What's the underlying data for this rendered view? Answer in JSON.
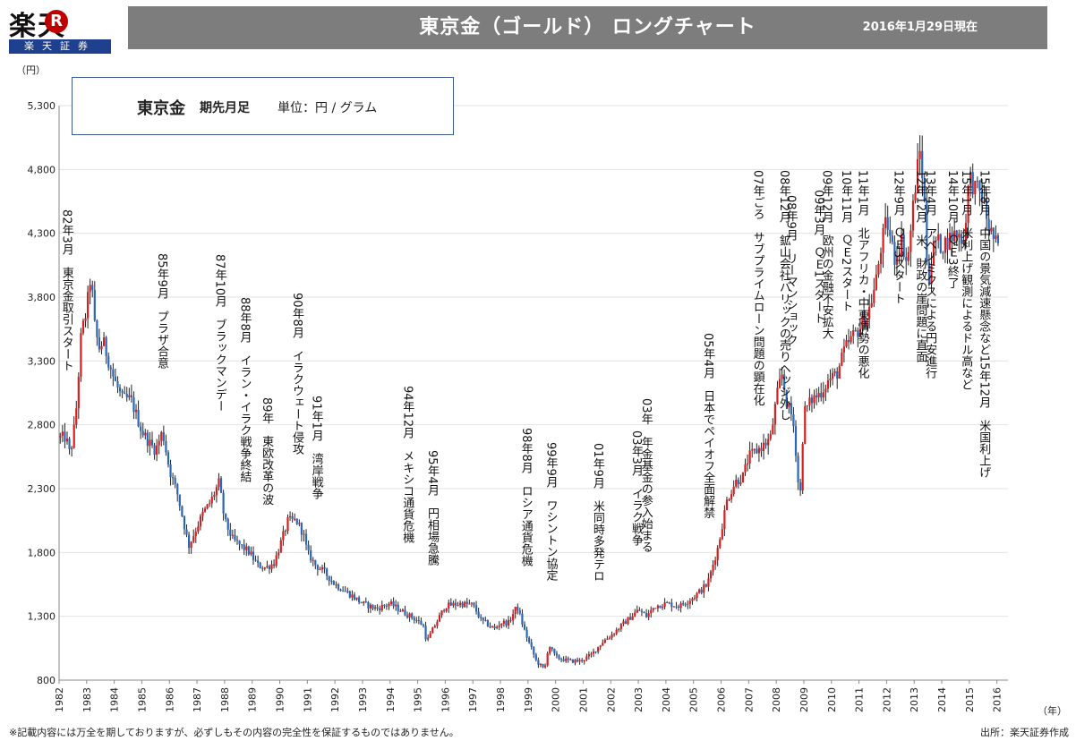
{
  "header": {
    "logo_text": "楽天",
    "logo_mark": "R",
    "logo_sub": "楽天証券",
    "title": "東京金（ゴールド） ロングチャート",
    "as_of": "2016年1月29日現在"
  },
  "legend_box": {
    "name": "東京金",
    "contract": "期先月足",
    "unit": "単位：円 / グラム"
  },
  "footer": {
    "disclaimer": "※記載内容には万全を期しておりますが、必ずしもその内容の完全性を保証するものではありません。",
    "source": "出所：楽天証券作成"
  },
  "chart_data": {
    "type": "candlestick",
    "title": "東京金（ゴールド） ロングチャート",
    "series_name": "東京金 期先月足",
    "ylabel": "（円）",
    "xlabel": "（年）",
    "ylim": [
      800,
      5300
    ],
    "xlim": [
      1982,
      2016.4
    ],
    "yticks": [
      800,
      1300,
      1800,
      2300,
      2800,
      3300,
      3800,
      4300,
      4800,
      5300
    ],
    "yticklabels": [
      "800",
      "1,300",
      "1,800",
      "2,300",
      "2,800",
      "3,300",
      "3,800",
      "4,300",
      "4,800",
      "5,300"
    ],
    "xticks": [
      1982,
      1983,
      1984,
      1985,
      1986,
      1987,
      1988,
      1989,
      1990,
      1991,
      1992,
      1993,
      1994,
      1995,
      1996,
      1997,
      1998,
      1999,
      2000,
      2001,
      2002,
      2003,
      2004,
      2005,
      2006,
      2007,
      2008,
      2009,
      2010,
      2011,
      2012,
      2013,
      2014,
      2015,
      2016
    ],
    "grid": true,
    "up_color": "#d81e1e",
    "down_color": "#2a67b8",
    "wick_color": "#222222",
    "price_path": [
      [
        1982.0,
        2700
      ],
      [
        1982.25,
        2700
      ],
      [
        1982.4,
        2560
      ],
      [
        1982.6,
        2850
      ],
      [
        1982.8,
        3500
      ],
      [
        1983.0,
        3700
      ],
      [
        1983.15,
        3980
      ],
      [
        1983.3,
        3550
      ],
      [
        1983.45,
        3400
      ],
      [
        1983.6,
        3450
      ],
      [
        1983.8,
        3300
      ],
      [
        1984.0,
        3150
      ],
      [
        1984.3,
        3000
      ],
      [
        1984.6,
        3000
      ],
      [
        1985.0,
        2750
      ],
      [
        1985.3,
        2650
      ],
      [
        1985.5,
        2600
      ],
      [
        1985.75,
        2750
      ],
      [
        1986.0,
        2450
      ],
      [
        1986.3,
        2250
      ],
      [
        1986.5,
        2050
      ],
      [
        1986.7,
        1850
      ],
      [
        1986.9,
        1950
      ],
      [
        1987.2,
        2100
      ],
      [
        1987.5,
        2200
      ],
      [
        1987.8,
        2350
      ],
      [
        1988.0,
        2050
      ],
      [
        1988.3,
        1900
      ],
      [
        1988.6,
        1850
      ],
      [
        1988.9,
        1800
      ],
      [
        1989.2,
        1700
      ],
      [
        1989.5,
        1680
      ],
      [
        1989.8,
        1720
      ],
      [
        1990.0,
        1850
      ],
      [
        1990.3,
        2050
      ],
      [
        1990.6,
        2050
      ],
      [
        1990.85,
        1950
      ],
      [
        1991.0,
        1800
      ],
      [
        1991.3,
        1700
      ],
      [
        1991.6,
        1650
      ],
      [
        1992.0,
        1550
      ],
      [
        1992.5,
        1480
      ],
      [
        1993.0,
        1400
      ],
      [
        1993.5,
        1360
      ],
      [
        1994.0,
        1400
      ],
      [
        1994.5,
        1330
      ],
      [
        1994.9,
        1280
      ],
      [
        1995.2,
        1230
      ],
      [
        1995.33,
        1100
      ],
      [
        1995.6,
        1220
      ],
      [
        1996.0,
        1380
      ],
      [
        1996.5,
        1400
      ],
      [
        1997.0,
        1390
      ],
      [
        1997.3,
        1270
      ],
      [
        1997.8,
        1200
      ],
      [
        1998.0,
        1250
      ],
      [
        1998.3,
        1250
      ],
      [
        1998.6,
        1380
      ],
      [
        1998.9,
        1170
      ],
      [
        1999.3,
        950
      ],
      [
        1999.6,
        880
      ],
      [
        1999.75,
        1080
      ],
      [
        2000.0,
        980
      ],
      [
        2000.5,
        950
      ],
      [
        2000.9,
        950
      ],
      [
        2001.3,
        1000
      ],
      [
        2001.7,
        1100
      ],
      [
        2002.0,
        1150
      ],
      [
        2002.5,
        1250
      ],
      [
        2003.0,
        1350
      ],
      [
        2003.3,
        1300
      ],
      [
        2003.6,
        1380
      ],
      [
        2004.0,
        1400
      ],
      [
        2004.5,
        1380
      ],
      [
        2005.0,
        1450
      ],
      [
        2005.5,
        1550
      ],
      [
        2005.9,
        1850
      ],
      [
        2006.2,
        2200
      ],
      [
        2006.5,
        2350
      ],
      [
        2006.8,
        2400
      ],
      [
        2007.0,
        2550
      ],
      [
        2007.3,
        2600
      ],
      [
        2007.6,
        2650
      ],
      [
        2007.8,
        2700
      ],
      [
        2008.0,
        3000
      ],
      [
        2008.2,
        3200
      ],
      [
        2008.4,
        2950
      ],
      [
        2008.6,
        2850
      ],
      [
        2008.75,
        2500
      ],
      [
        2008.85,
        2150
      ],
      [
        2009.0,
        2900
      ],
      [
        2009.3,
        3000
      ],
      [
        2009.6,
        3050
      ],
      [
        2009.9,
        3150
      ],
      [
        2010.2,
        3200
      ],
      [
        2010.5,
        3400
      ],
      [
        2010.8,
        3500
      ],
      [
        2011.0,
        3550
      ],
      [
        2011.3,
        3650
      ],
      [
        2011.6,
        3900
      ],
      [
        2011.8,
        4200
      ],
      [
        2012.0,
        4400
      ],
      [
        2012.3,
        4100
      ],
      [
        2012.55,
        4250
      ],
      [
        2012.75,
        4050
      ],
      [
        2013.0,
        4600
      ],
      [
        2013.2,
        4950
      ],
      [
        2013.35,
        4650
      ],
      [
        2013.5,
        3900
      ],
      [
        2013.75,
        4250
      ],
      [
        2014.0,
        4200
      ],
      [
        2014.5,
        4300
      ],
      [
        2014.8,
        4250
      ],
      [
        2015.0,
        4750
      ],
      [
        2015.2,
        4650
      ],
      [
        2015.45,
        4600
      ],
      [
        2015.7,
        4350
      ],
      [
        2016.0,
        4200
      ],
      [
        2016.08,
        4150
      ]
    ],
    "annotations": [
      {
        "x": 1982.25,
        "text": "82年3月　東京金取引スタート"
      },
      {
        "x": 1985.7,
        "text": "85年9月　プラザ合意"
      },
      {
        "x": 1987.8,
        "text": "87年10月　ブラックマンデー"
      },
      {
        "x": 1988.7,
        "text": "88年8月　イラン・イラク戦争終結"
      },
      {
        "x": 1989.5,
        "text": "89年　東欧改革の波"
      },
      {
        "x": 1990.6,
        "text": "90年8月　イラクウェート侵攻"
      },
      {
        "x": 1991.3,
        "text": "91年1月　湾岸戦争"
      },
      {
        "x": 1994.6,
        "text": "94年12月　メキシコ通貨危機"
      },
      {
        "x": 1995.5,
        "text": "95年4月　円相場急騰"
      },
      {
        "x": 1998.9,
        "text": "98年8月　ロシア通貨危機"
      },
      {
        "x": 1999.8,
        "text": "99年9月　ワシントン協定"
      },
      {
        "x": 2001.5,
        "text": "01年9月　米同時多発テロ"
      },
      {
        "x": 2002.9,
        "text": "03年3月　イラク戦争"
      },
      {
        "x": 2003.25,
        "text": "03年　年金基金の参入始まる"
      },
      {
        "x": 2005.5,
        "text": "05年4月　日本でペイオフ全面解禁"
      },
      {
        "x": 2007.3,
        "text": "07年ごろ　サブプライムローン問題の顕在化"
      },
      {
        "x": 2008.5,
        "text": "08年9月　リーマンショック"
      },
      {
        "x": 2008.25,
        "text": "08年12月　鉱山会社バリックの売りヘッジ外し"
      },
      {
        "x": 2009.5,
        "text": "09年3月　ＱＥ1スタート"
      },
      {
        "x": 2009.8,
        "text": "09年12月　欧州の金融不安拡大"
      },
      {
        "x": 2010.5,
        "text": "10年11月　ＱＥ2スタート"
      },
      {
        "x": 2011.1,
        "text": "11年1月　北アフリカ・中東情勢の悪化"
      },
      {
        "x": 2012.4,
        "text": "12年9月　ＱＥ3スタート"
      },
      {
        "x": 2013.2,
        "text": "12年12月　米、財政の崖問題に直面"
      },
      {
        "x": 2013.55,
        "text": "13年4月　アベノミクスによる円安進行"
      },
      {
        "x": 2014.35,
        "text": "14年10月　ＱＥ3終了"
      },
      {
        "x": 2014.85,
        "text": "15年1月　米利上げ観測によるドル高など"
      },
      {
        "x": 2015.5,
        "text": "15年8月　中国の景気減速懸念など15年12月　米国利上げ"
      }
    ]
  }
}
